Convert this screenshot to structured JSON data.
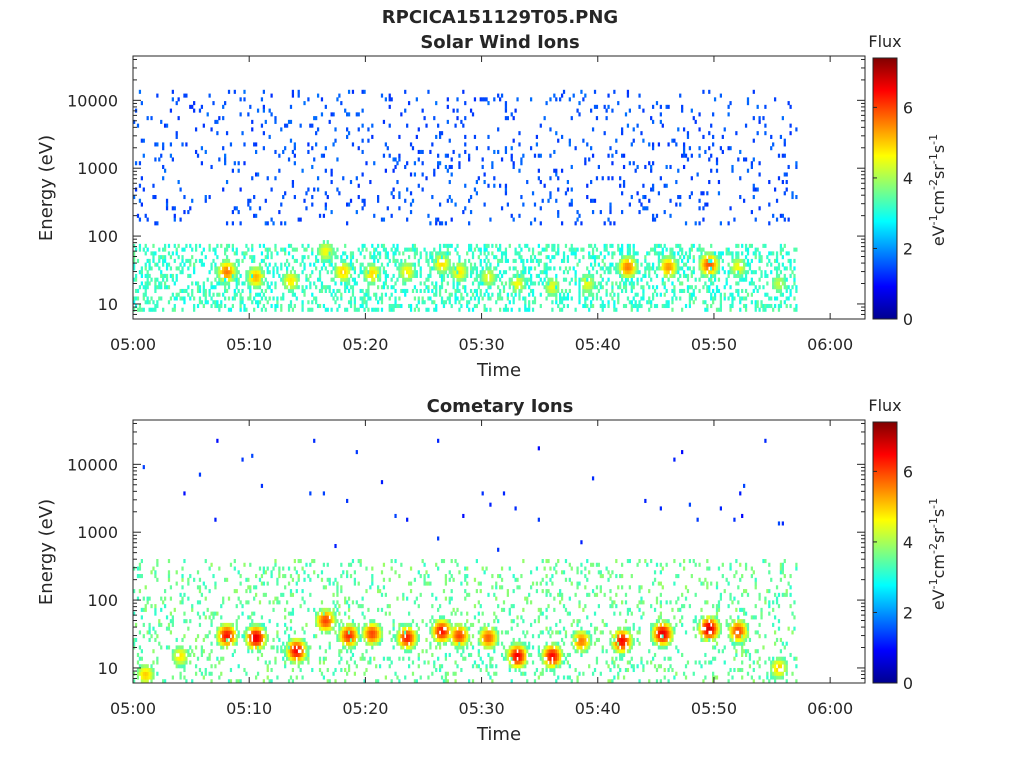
{
  "figure": {
    "title": "RPCICA151129T05.PNG"
  },
  "colormap": "jet",
  "chart_data": [
    {
      "type": "heatmap",
      "title": "Solar Wind Ions",
      "xlabel": "Time",
      "ylabel": "Energy (eV)",
      "x_ticks": [
        "05:00",
        "05:10",
        "05:20",
        "05:30",
        "05:40",
        "05:50",
        "06:00"
      ],
      "x_range_minutes": [
        0,
        63
      ],
      "data_end_minute": 57,
      "y_scale": "log",
      "y_ticks": [
        "10",
        "100",
        "1000",
        "10000"
      ],
      "y_range_eV": [
        6,
        45000
      ],
      "colorbar": {
        "label": "Flux",
        "units": "eV⁻¹cm⁻²sr⁻¹s⁻¹",
        "ticks": [
          "0",
          "2",
          "4",
          "6"
        ],
        "range": [
          0,
          7.4
        ]
      },
      "features": {
        "high_energy_scatter": {
          "energy_range_eV": [
            150,
            15000
          ],
          "typical_flux": 1.5
        },
        "low_energy_band": {
          "energy_range_eV": [
            8,
            80
          ],
          "typical_flux": 3.2
        },
        "peak_bursts": [
          {
            "minute": 8.0,
            "energy_eV": 30,
            "flux": 5.6
          },
          {
            "minute": 10.5,
            "energy_eV": 25,
            "flux": 5.2
          },
          {
            "minute": 13.5,
            "energy_eV": 22,
            "flux": 4.8
          },
          {
            "minute": 16.5,
            "energy_eV": 60,
            "flux": 4.6
          },
          {
            "minute": 18.0,
            "energy_eV": 30,
            "flux": 5.0
          },
          {
            "minute": 20.5,
            "energy_eV": 28,
            "flux": 4.9
          },
          {
            "minute": 23.5,
            "energy_eV": 30,
            "flux": 4.7
          },
          {
            "minute": 26.5,
            "energy_eV": 40,
            "flux": 4.9
          },
          {
            "minute": 28.0,
            "energy_eV": 30,
            "flux": 4.8
          },
          {
            "minute": 30.5,
            "energy_eV": 25,
            "flux": 4.5
          },
          {
            "minute": 33.0,
            "energy_eV": 20,
            "flux": 4.6
          },
          {
            "minute": 36.0,
            "energy_eV": 18,
            "flux": 4.5
          },
          {
            "minute": 39.0,
            "energy_eV": 20,
            "flux": 4.5
          },
          {
            "minute": 42.5,
            "energy_eV": 35,
            "flux": 5.6
          },
          {
            "minute": 46.0,
            "energy_eV": 35,
            "flux": 5.4
          },
          {
            "minute": 49.5,
            "energy_eV": 38,
            "flux": 5.9
          },
          {
            "minute": 52.0,
            "energy_eV": 35,
            "flux": 4.6
          },
          {
            "minute": 55.5,
            "energy_eV": 20,
            "flux": 4.2
          }
        ]
      }
    },
    {
      "type": "heatmap",
      "title": "Cometary Ions",
      "xlabel": "Time",
      "ylabel": "Energy (eV)",
      "x_ticks": [
        "05:00",
        "05:10",
        "05:20",
        "05:30",
        "05:40",
        "05:50",
        "06:00"
      ],
      "x_range_minutes": [
        0,
        63
      ],
      "data_end_minute": 57,
      "y_scale": "log",
      "y_ticks": [
        "10",
        "100",
        "1000",
        "10000"
      ],
      "y_range_eV": [
        6,
        45000
      ],
      "colorbar": {
        "label": "Flux",
        "units": "eV⁻¹cm⁻²sr⁻¹s⁻¹",
        "ticks": [
          "0",
          "2",
          "4",
          "6"
        ],
        "range": [
          0,
          7.4
        ]
      },
      "features": {
        "sparse_high_energy_points": {
          "energy_range_eV": [
            500,
            25000
          ],
          "typical_flux": 1.2
        },
        "low_energy_band": {
          "energy_range_eV": [
            6,
            400
          ],
          "typical_flux": 3.5
        },
        "peak_bursts": [
          {
            "minute": 1.0,
            "energy_eV": 8,
            "flux": 5.0
          },
          {
            "minute": 4.0,
            "energy_eV": 15,
            "flux": 4.8
          },
          {
            "minute": 8.0,
            "energy_eV": 30,
            "flux": 6.4
          },
          {
            "minute": 10.5,
            "energy_eV": 28,
            "flux": 6.7
          },
          {
            "minute": 14.0,
            "energy_eV": 18,
            "flux": 6.5
          },
          {
            "minute": 16.5,
            "energy_eV": 50,
            "flux": 6.0
          },
          {
            "minute": 18.5,
            "energy_eV": 30,
            "flux": 6.2
          },
          {
            "minute": 20.5,
            "energy_eV": 32,
            "flux": 6.0
          },
          {
            "minute": 23.5,
            "energy_eV": 28,
            "flux": 6.3
          },
          {
            "minute": 26.5,
            "energy_eV": 35,
            "flux": 6.4
          },
          {
            "minute": 28.0,
            "energy_eV": 30,
            "flux": 6.0
          },
          {
            "minute": 30.5,
            "energy_eV": 28,
            "flux": 5.8
          },
          {
            "minute": 33.0,
            "energy_eV": 15,
            "flux": 6.6
          },
          {
            "minute": 36.0,
            "energy_eV": 15,
            "flux": 6.5
          },
          {
            "minute": 38.5,
            "energy_eV": 25,
            "flux": 5.6
          },
          {
            "minute": 42.0,
            "energy_eV": 25,
            "flux": 6.5
          },
          {
            "minute": 45.5,
            "energy_eV": 32,
            "flux": 6.7
          },
          {
            "minute": 49.5,
            "energy_eV": 38,
            "flux": 6.8
          },
          {
            "minute": 52.0,
            "energy_eV": 35,
            "flux": 6.0
          },
          {
            "minute": 55.5,
            "energy_eV": 10,
            "flux": 5.0
          }
        ]
      }
    }
  ]
}
